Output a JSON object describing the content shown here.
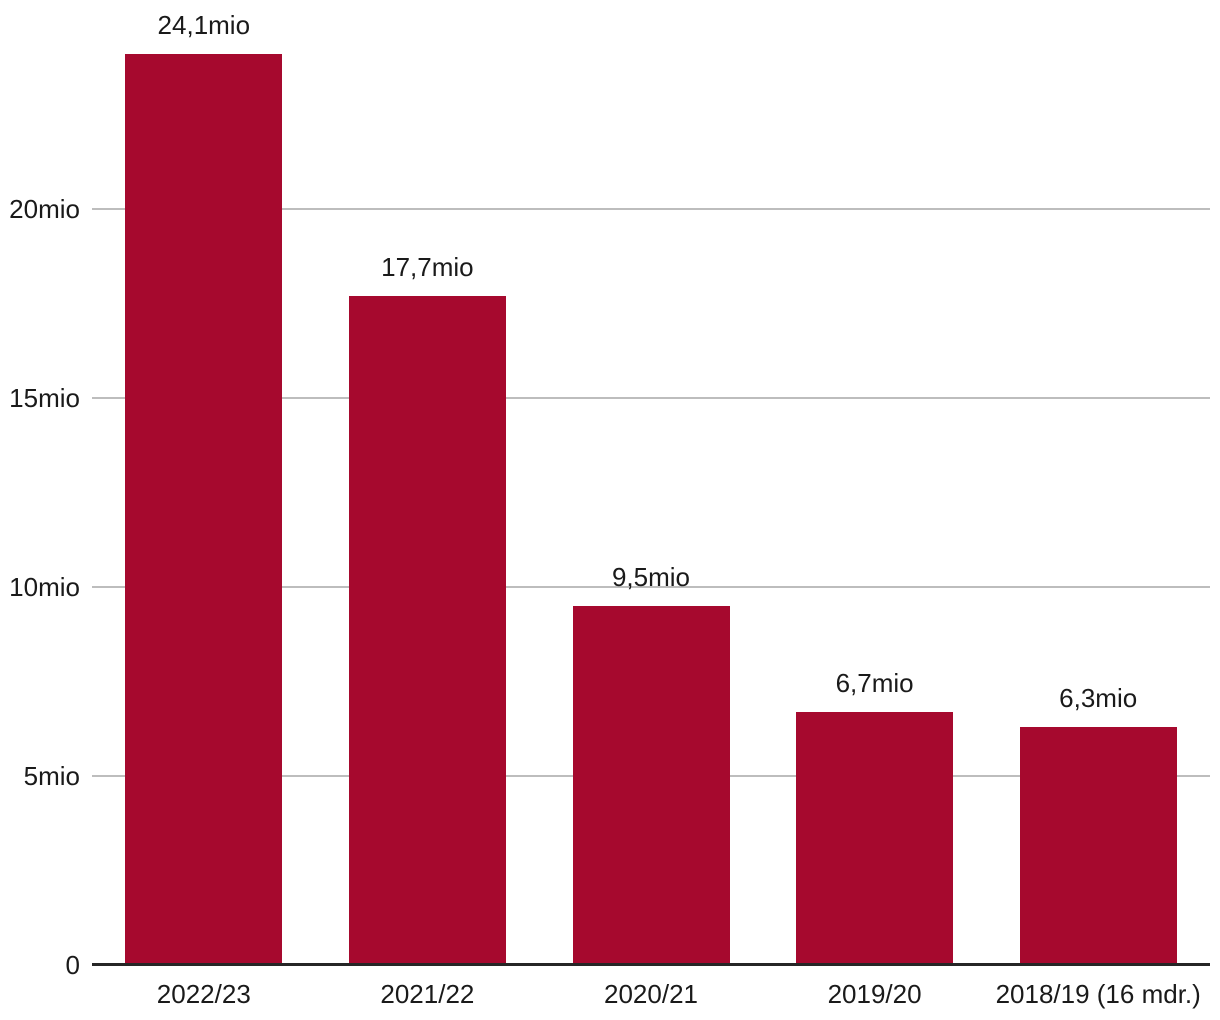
{
  "chart_data": {
    "type": "bar",
    "title": "",
    "categories": [
      "2022/23",
      "2021/22",
      "2020/21",
      "2019/20",
      "2018/19 (16 mdr.)"
    ],
    "values": [
      24.1,
      17.7,
      9.5,
      6.7,
      6.3
    ],
    "bar_value_labels": [
      "24,1mio",
      "17,7mio",
      "9,5mio",
      "6,7mio",
      "6,3mio"
    ],
    "unit": "mio",
    "y_axis": {
      "ticks": [
        {
          "value": 0,
          "label": "0"
        },
        {
          "value": 5,
          "label": "5mio"
        },
        {
          "value": 10,
          "label": "10mio"
        },
        {
          "value": 15,
          "label": "15mio"
        },
        {
          "value": 20,
          "label": "20mio"
        }
      ],
      "range": [
        0,
        24.1
      ]
    },
    "grid": "horizontal",
    "legend": "none",
    "colors": {
      "bar": "#A6092E",
      "gridline": "#BDBDBD",
      "axis": "#262626",
      "text": "#1A1A1A"
    }
  },
  "layout_hints": {
    "gridlines_behind_bars": true,
    "value_labels_above_bars": true
  }
}
